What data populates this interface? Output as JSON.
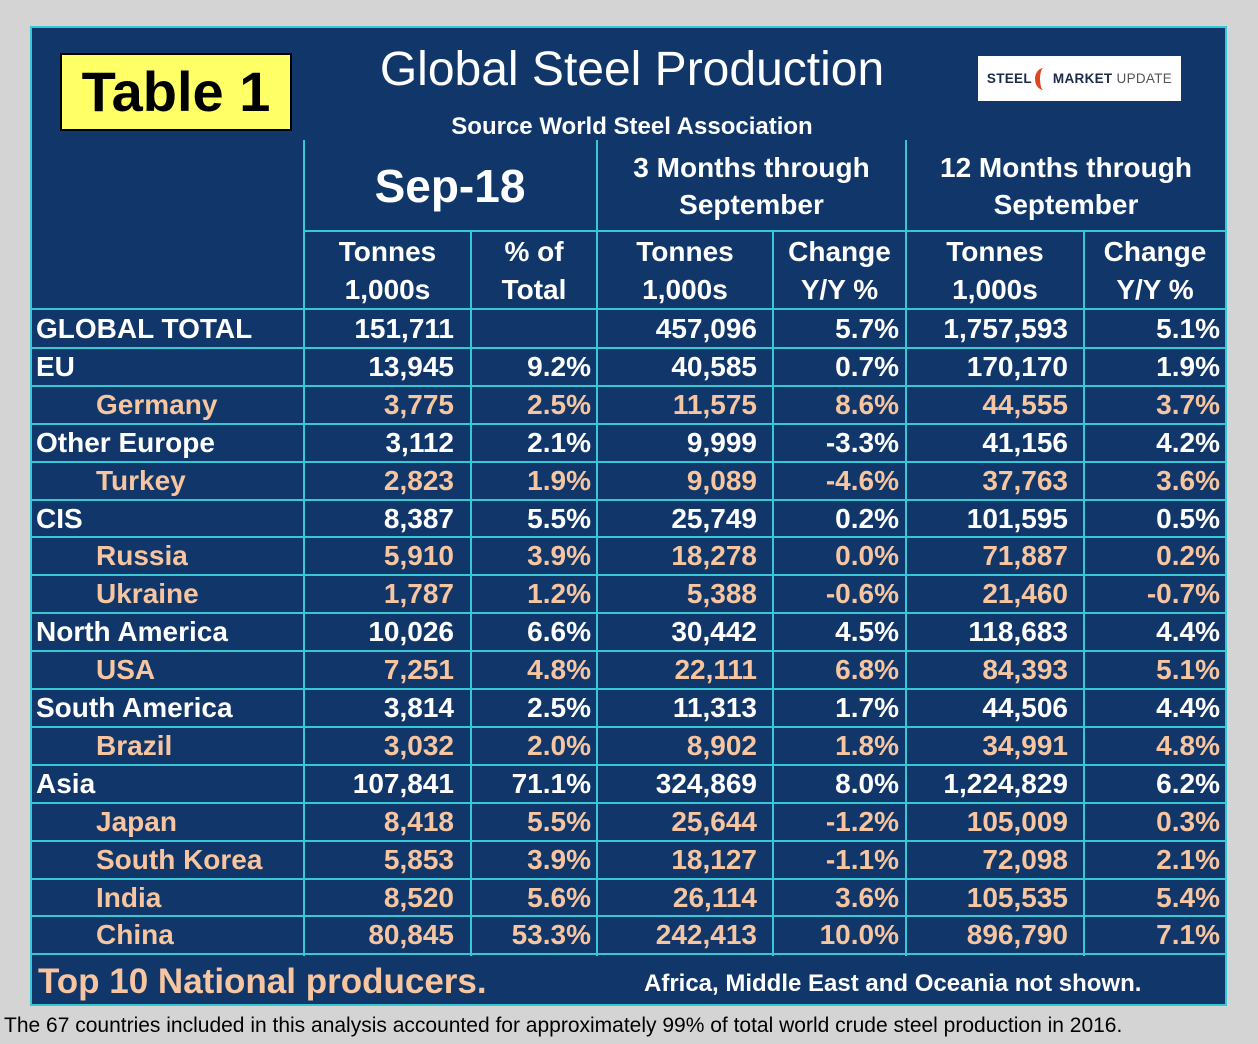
{
  "badge": "Table 1",
  "title": "Global Steel Production",
  "subtitle": "Source World Steel Association",
  "logo": {
    "part1": "STEEL",
    "part2": "MARKET",
    "part3": "UPDATE"
  },
  "headers": {
    "group1": "Sep-18",
    "group2_line1": "3 Months through",
    "group2_line2": "September",
    "group3_line1": "12 Months through",
    "group3_line2": "September",
    "col1_line1": "Tonnes",
    "col1_line2": "1,000s",
    "col2_line1": "% of",
    "col2_line2": "Total",
    "col3_line1": "Tonnes",
    "col3_line2": "1,000s",
    "col4_line1": "Change",
    "col4_line2": "Y/Y %",
    "col5_line1": "Tonnes",
    "col5_line2": "1,000s",
    "col6_line1": "Change",
    "col6_line2": "Y/Y %"
  },
  "rows": [
    {
      "label": "GLOBAL TOTAL",
      "sep_tonnes": "151,711",
      "sep_pct": "",
      "m3_tonnes": "457,096",
      "m3_change": "5.7%",
      "m12_tonnes": "1,757,593",
      "m12_change": "5.1%"
    },
    {
      "label": "EU",
      "sep_tonnes": "13,945",
      "sep_pct": "9.2%",
      "m3_tonnes": "40,585",
      "m3_change": "0.7%",
      "m12_tonnes": "170,170",
      "m12_change": "1.9%"
    },
    {
      "label": "Germany",
      "sep_tonnes": "3,775",
      "sep_pct": "2.5%",
      "m3_tonnes": "11,575",
      "m3_change": "8.6%",
      "m12_tonnes": "44,555",
      "m12_change": "3.7%"
    },
    {
      "label": "Other Europe",
      "sep_tonnes": "3,112",
      "sep_pct": "2.1%",
      "m3_tonnes": "9,999",
      "m3_change": "-3.3%",
      "m12_tonnes": "41,156",
      "m12_change": "4.2%"
    },
    {
      "label": "Turkey",
      "sep_tonnes": "2,823",
      "sep_pct": "1.9%",
      "m3_tonnes": "9,089",
      "m3_change": "-4.6%",
      "m12_tonnes": "37,763",
      "m12_change": "3.6%"
    },
    {
      "label": "CIS",
      "sep_tonnes": "8,387",
      "sep_pct": "5.5%",
      "m3_tonnes": "25,749",
      "m3_change": "0.2%",
      "m12_tonnes": "101,595",
      "m12_change": "0.5%"
    },
    {
      "label": "Russia",
      "sep_tonnes": "5,910",
      "sep_pct": "3.9%",
      "m3_tonnes": "18,278",
      "m3_change": "0.0%",
      "m12_tonnes": "71,887",
      "m12_change": "0.2%"
    },
    {
      "label": "Ukraine",
      "sep_tonnes": "1,787",
      "sep_pct": "1.2%",
      "m3_tonnes": "5,388",
      "m3_change": "-0.6%",
      "m12_tonnes": "21,460",
      "m12_change": "-0.7%"
    },
    {
      "label": "North America",
      "sep_tonnes": "10,026",
      "sep_pct": "6.6%",
      "m3_tonnes": "30,442",
      "m3_change": "4.5%",
      "m12_tonnes": "118,683",
      "m12_change": "4.4%"
    },
    {
      "label": "USA",
      "sep_tonnes": "7,251",
      "sep_pct": "4.8%",
      "m3_tonnes": "22,111",
      "m3_change": "6.8%",
      "m12_tonnes": "84,393",
      "m12_change": "5.1%"
    },
    {
      "label": "South America",
      "sep_tonnes": "3,814",
      "sep_pct": "2.5%",
      "m3_tonnes": "11,313",
      "m3_change": "1.7%",
      "m12_tonnes": "44,506",
      "m12_change": "4.4%"
    },
    {
      "label": "Brazil",
      "sep_tonnes": "3,032",
      "sep_pct": "2.0%",
      "m3_tonnes": "8,902",
      "m3_change": "1.8%",
      "m12_tonnes": "34,991",
      "m12_change": "4.8%"
    },
    {
      "label": "Asia",
      "sep_tonnes": "107,841",
      "sep_pct": "71.1%",
      "m3_tonnes": "324,869",
      "m3_change": "8.0%",
      "m12_tonnes": "1,224,829",
      "m12_change": "6.2%"
    },
    {
      "label": "Japan",
      "sep_tonnes": "8,418",
      "sep_pct": "5.5%",
      "m3_tonnes": "25,644",
      "m3_change": "-1.2%",
      "m12_tonnes": "105,009",
      "m12_change": "0.3%"
    },
    {
      "label": "South Korea",
      "sep_tonnes": "5,853",
      "sep_pct": "3.9%",
      "m3_tonnes": "18,127",
      "m3_change": "-1.1%",
      "m12_tonnes": "72,098",
      "m12_change": "2.1%"
    },
    {
      "label": "India",
      "sep_tonnes": "8,520",
      "sep_pct": "5.6%",
      "m3_tonnes": "26,114",
      "m3_change": "3.6%",
      "m12_tonnes": "105,535",
      "m12_change": "5.4%"
    },
    {
      "label": "China",
      "sep_tonnes": "80,845",
      "sep_pct": "53.3%",
      "m3_tonnes": "242,413",
      "m3_change": "10.0%",
      "m12_tonnes": "896,790",
      "m12_change": "7.1%"
    }
  ],
  "footer_left": "Top 10 National producers.",
  "footer_right": "Africa, Middle East and Oceania not shown.",
  "note": "The 67 countries included in this analysis accounted for approximately 99% of total world crude steel production in 2016.",
  "colors": {
    "panel": "#11376a",
    "grid": "#37c8d6",
    "badge": "#ffff66",
    "sub_text": "#f7c59f"
  }
}
